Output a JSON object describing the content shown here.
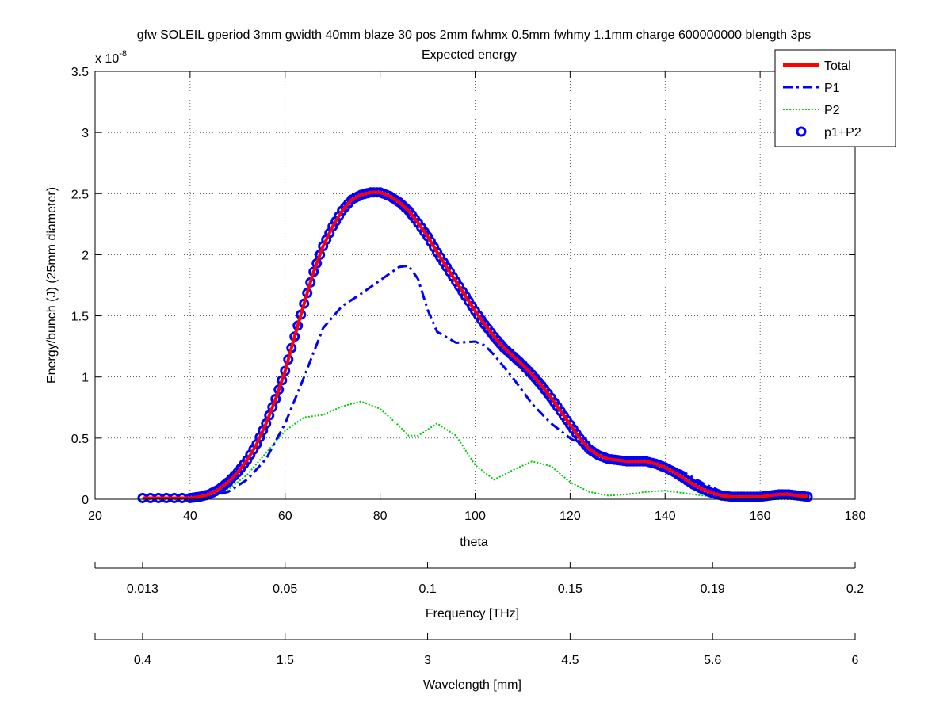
{
  "chart_data": {
    "type": "line",
    "title": "gfw SOLEIL gperiod 3mm gwidth 40mm blaze 30 pos 2mm fwhmx 0.5mm fwhmy 1.1mm charge 600000000 blength 3ps",
    "subtitle": "Expected energy",
    "xlabel": "theta",
    "ylabel": "Energy/bunch (J) (25mm diameter)",
    "y_exponent_label": "x 10",
    "y_exponent": "-8",
    "xlim": [
      20,
      180
    ],
    "ylim": [
      0,
      3.5
    ],
    "xticks": [
      20,
      40,
      60,
      80,
      100,
      120,
      140,
      160,
      180
    ],
    "yticks": [
      0,
      0.5,
      1,
      1.5,
      2,
      2.5,
      3,
      3.5
    ],
    "grid": true,
    "legend_position": "top-right",
    "series": [
      {
        "name": "Total",
        "color": "#ff0000",
        "style": "solid",
        "x": [
          30,
          35,
          40,
          42,
          44,
          46,
          48,
          50,
          52,
          54,
          56,
          58,
          60,
          62,
          64,
          66,
          68,
          70,
          72,
          74,
          76,
          78,
          80,
          82,
          84,
          86,
          88,
          90,
          92,
          94,
          96,
          98,
          100,
          102,
          104,
          106,
          108,
          110,
          112,
          114,
          116,
          118,
          120,
          122,
          124,
          126,
          128,
          130,
          132,
          134,
          136,
          138,
          140,
          142,
          144,
          146,
          148,
          150,
          152,
          154,
          156,
          158,
          160,
          162,
          164,
          166,
          168,
          170
        ],
        "y": [
          0.01,
          0.01,
          0.01,
          0.02,
          0.04,
          0.08,
          0.14,
          0.22,
          0.32,
          0.45,
          0.62,
          0.82,
          1.05,
          1.33,
          1.6,
          1.86,
          2.07,
          2.23,
          2.36,
          2.45,
          2.49,
          2.51,
          2.51,
          2.48,
          2.43,
          2.36,
          2.26,
          2.15,
          2.02,
          1.9,
          1.78,
          1.66,
          1.54,
          1.43,
          1.33,
          1.24,
          1.17,
          1.1,
          1.02,
          0.93,
          0.83,
          0.72,
          0.61,
          0.5,
          0.41,
          0.36,
          0.33,
          0.32,
          0.31,
          0.31,
          0.31,
          0.29,
          0.26,
          0.22,
          0.17,
          0.12,
          0.08,
          0.05,
          0.03,
          0.02,
          0.02,
          0.02,
          0.02,
          0.03,
          0.04,
          0.04,
          0.03,
          0.02
        ]
      },
      {
        "name": "P1",
        "color": "#0000ff",
        "style": "dashdot",
        "x": [
          30,
          40,
          44,
          48,
          52,
          56,
          60,
          64,
          68,
          72,
          76,
          80,
          84,
          86,
          88,
          90,
          92,
          96,
          100,
          102,
          104,
          108,
          112,
          116,
          120,
          124,
          128,
          132,
          136,
          140,
          144,
          148,
          152,
          156,
          160,
          164,
          168,
          170
        ],
        "y": [
          0.01,
          0.01,
          0.02,
          0.06,
          0.16,
          0.33,
          0.62,
          1.0,
          1.4,
          1.58,
          1.68,
          1.79,
          1.9,
          1.91,
          1.8,
          1.55,
          1.37,
          1.28,
          1.29,
          1.26,
          1.18,
          0.99,
          0.78,
          0.62,
          0.5,
          0.41,
          0.35,
          0.32,
          0.31,
          0.29,
          0.22,
          0.13,
          0.06,
          0.02,
          0.02,
          0.03,
          0.03,
          0.02
        ]
      },
      {
        "name": "P2",
        "color": "#00cc00",
        "style": "dotted",
        "x": [
          30,
          40,
          44,
          48,
          52,
          56,
          60,
          64,
          68,
          72,
          76,
          80,
          84,
          86,
          88,
          92,
          96,
          100,
          104,
          108,
          112,
          116,
          120,
          124,
          128,
          132,
          136,
          140,
          144,
          148,
          152,
          156,
          160,
          164,
          168,
          170
        ],
        "y": [
          0.0,
          0.0,
          0.02,
          0.08,
          0.2,
          0.38,
          0.56,
          0.67,
          0.69,
          0.76,
          0.8,
          0.74,
          0.6,
          0.52,
          0.52,
          0.62,
          0.52,
          0.28,
          0.16,
          0.24,
          0.31,
          0.27,
          0.14,
          0.06,
          0.03,
          0.04,
          0.06,
          0.07,
          0.05,
          0.03,
          0.01,
          0.0,
          0.0,
          0.0,
          0.0,
          0.0
        ]
      },
      {
        "name": "p1+P2",
        "color": "#0000ff",
        "style": "circles",
        "x": [
          30,
          35,
          40,
          42,
          44,
          46,
          48,
          50,
          52,
          54,
          56,
          58,
          60,
          62,
          64,
          66,
          68,
          70,
          72,
          74,
          76,
          78,
          80,
          82,
          84,
          86,
          88,
          90,
          92,
          94,
          96,
          98,
          100,
          102,
          104,
          106,
          108,
          110,
          112,
          114,
          116,
          118,
          120,
          122,
          124,
          126,
          128,
          130,
          132,
          134,
          136,
          138,
          140,
          142,
          144,
          146,
          148,
          150,
          152,
          154,
          156,
          158,
          160,
          162,
          164,
          166,
          168,
          170
        ],
        "y": [
          0.01,
          0.01,
          0.01,
          0.02,
          0.04,
          0.08,
          0.14,
          0.22,
          0.32,
          0.45,
          0.62,
          0.82,
          1.05,
          1.33,
          1.6,
          1.86,
          2.07,
          2.23,
          2.36,
          2.45,
          2.49,
          2.51,
          2.51,
          2.48,
          2.43,
          2.36,
          2.26,
          2.15,
          2.02,
          1.9,
          1.78,
          1.66,
          1.54,
          1.43,
          1.33,
          1.24,
          1.17,
          1.1,
          1.02,
          0.93,
          0.83,
          0.72,
          0.61,
          0.5,
          0.41,
          0.36,
          0.33,
          0.32,
          0.31,
          0.31,
          0.31,
          0.29,
          0.26,
          0.22,
          0.17,
          0.12,
          0.08,
          0.05,
          0.03,
          0.02,
          0.02,
          0.02,
          0.02,
          0.03,
          0.04,
          0.04,
          0.03,
          0.02
        ]
      }
    ],
    "secondary_axes": [
      {
        "label": "Frequency [THz]",
        "tick_values": [
          20,
          30,
          60,
          90,
          120,
          150,
          180
        ],
        "tick_labels": [
          "",
          "0.013",
          "0.05",
          "0.1",
          "0.15",
          "0.19",
          "0.2"
        ]
      },
      {
        "label": "Wavelength [mm]",
        "tick_values": [
          20,
          30,
          60,
          90,
          120,
          150,
          180
        ],
        "tick_labels": [
          "",
          "0.4",
          "1.5",
          "3",
          "4.5",
          "5.6",
          "6"
        ]
      }
    ]
  }
}
